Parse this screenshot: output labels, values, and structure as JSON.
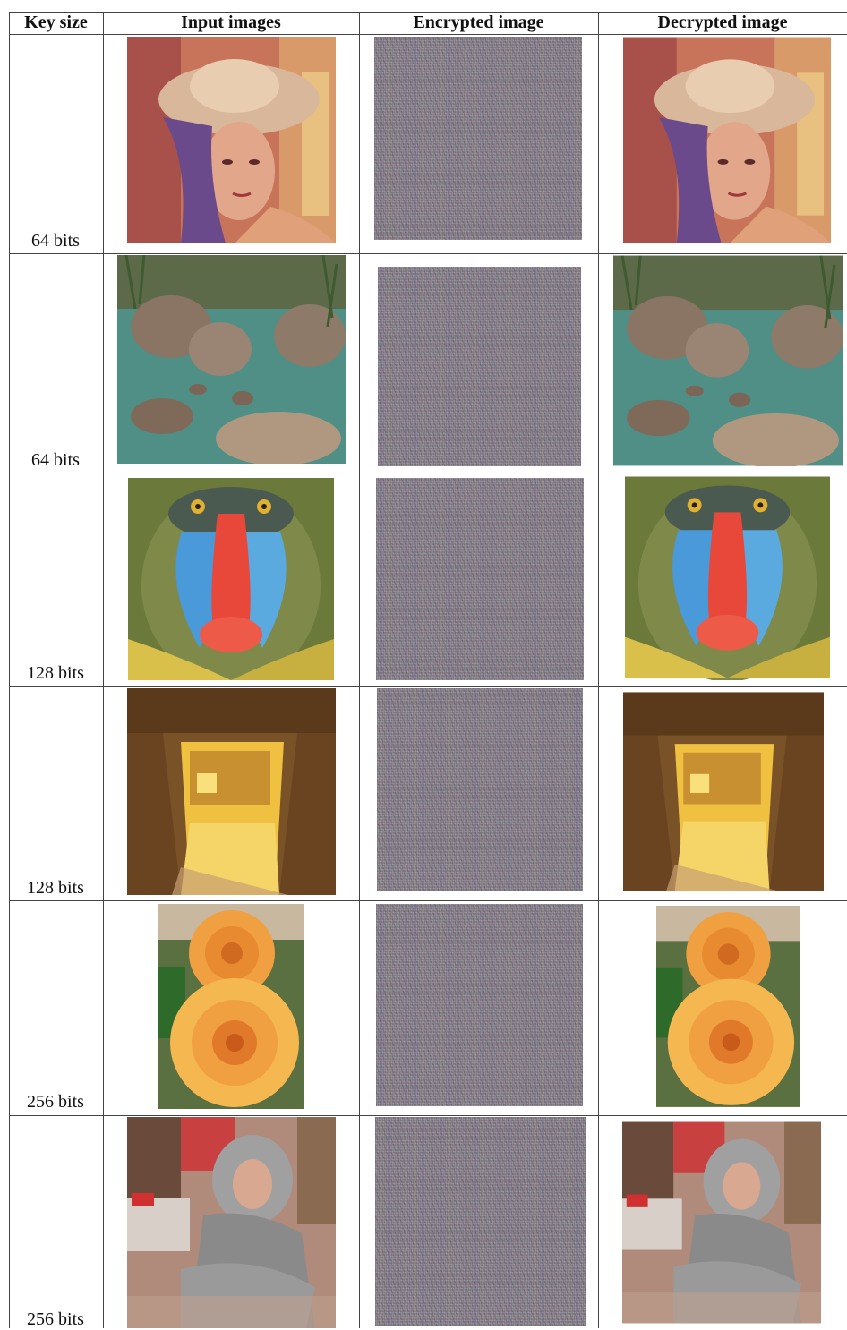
{
  "table": {
    "headers": [
      "Key size",
      "Input images",
      "Encrypted image",
      "Decrypted image"
    ],
    "rows": [
      {
        "key_size": "64 bits",
        "image": "lena-photo"
      },
      {
        "key_size": "64 bits",
        "image": "stream-rocks-photo"
      },
      {
        "key_size": "128 bits",
        "image": "mandrill-photo"
      },
      {
        "key_size": "128 bits",
        "image": "stone-doorway-photo"
      },
      {
        "key_size": "256 bits",
        "image": "roses-photo"
      },
      {
        "key_size": "256 bits",
        "image": "seated-woman-photo"
      }
    ]
  }
}
